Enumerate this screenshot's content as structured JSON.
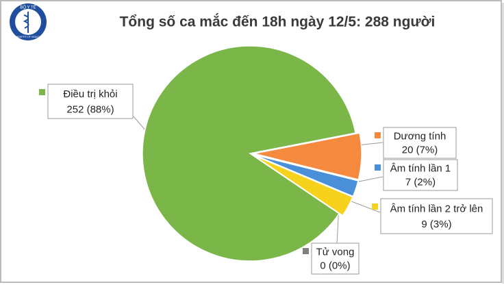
{
  "logo": {
    "top": "BỘ Y TẾ",
    "bottom": "MINISTRY OF HEALTH"
  },
  "chart_data": {
    "type": "pie",
    "title": "Tổng số ca mắc đến 18h ngày 12/5: 288 người",
    "categories": [
      "Dương tính",
      "Âm tính lần 1",
      "Âm tính lần 2 trở lên",
      "Tử vong",
      "Điều trị khỏi"
    ],
    "values": [
      20,
      7,
      9,
      0,
      252
    ],
    "value_labels": [
      "20 (7%)",
      "7 (2%)",
      "9 (3%)",
      "0 (0%)",
      "252 (88%)"
    ],
    "colors": [
      "#f5893d",
      "#4a90d9",
      "#f6d21c",
      "#7f7f7f",
      "#7ab648"
    ]
  }
}
